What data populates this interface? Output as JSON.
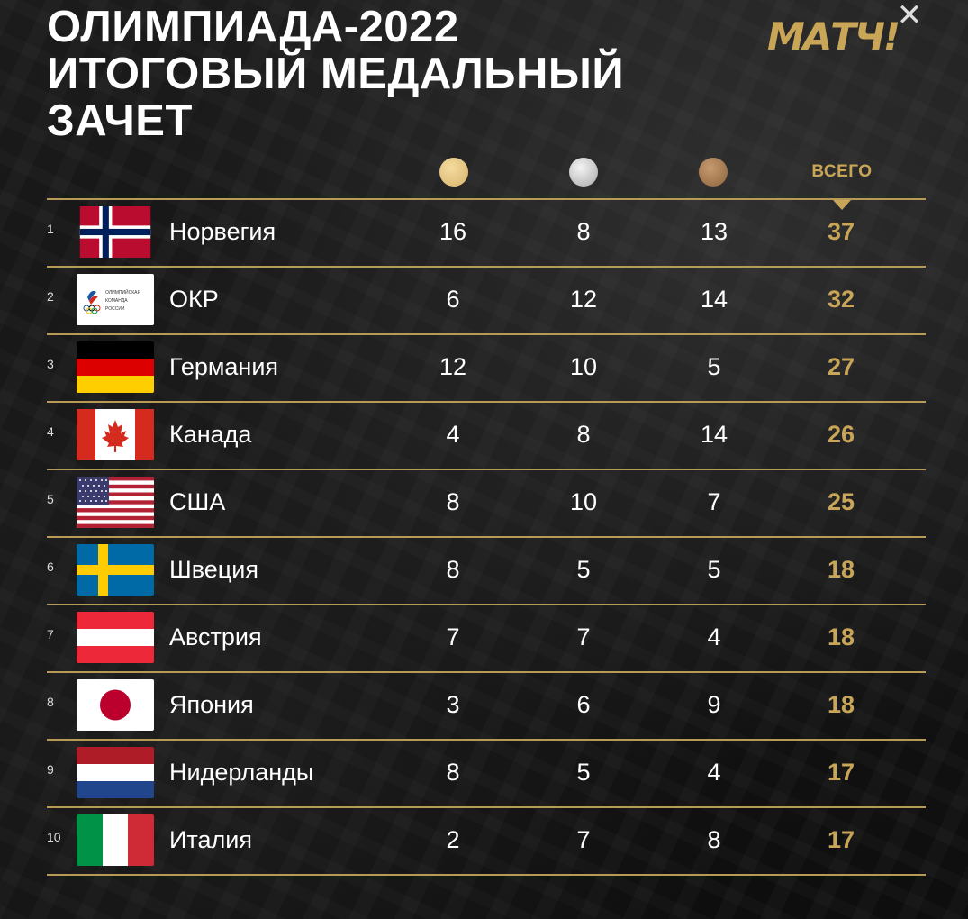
{
  "title": {
    "line1": "ОЛИМПИАДА-2022",
    "line2": "ИТОГОВЫЙ МЕДАЛЬНЫЙ",
    "line3": "ЗАЧЕТ"
  },
  "logo": "МАТЧ!",
  "close_icon": "close-icon",
  "header": {
    "total_label": "ВСЕГО"
  },
  "colors": {
    "gold_accent": "#c9a557",
    "gold_medal": "#d7b46a",
    "silver_medal": "#a9a9a9",
    "bronze_medal": "#8c6440"
  },
  "rows": [
    {
      "rank": "1",
      "country": "Норвегия",
      "gold": "16",
      "silver": "8",
      "bronze": "13",
      "total": "37"
    },
    {
      "rank": "2",
      "country": "ОКР",
      "gold": "6",
      "silver": "12",
      "bronze": "14",
      "total": "32",
      "flag_text": [
        "ОЛИМПИЙСКАЯ",
        "КОМАНДА",
        "РОССИИ"
      ]
    },
    {
      "rank": "3",
      "country": "Германия",
      "gold": "12",
      "silver": "10",
      "bronze": "5",
      "total": "27"
    },
    {
      "rank": "4",
      "country": "Канада",
      "gold": "4",
      "silver": "8",
      "bronze": "14",
      "total": "26"
    },
    {
      "rank": "5",
      "country": "США",
      "gold": "8",
      "silver": "10",
      "bronze": "7",
      "total": "25"
    },
    {
      "rank": "6",
      "country": "Швеция",
      "gold": "8",
      "silver": "5",
      "bronze": "5",
      "total": "18"
    },
    {
      "rank": "7",
      "country": "Австрия",
      "gold": "7",
      "silver": "7",
      "bronze": "4",
      "total": "18"
    },
    {
      "rank": "8",
      "country": "Япония",
      "gold": "3",
      "silver": "6",
      "bronze": "9",
      "total": "18"
    },
    {
      "rank": "9",
      "country": "Нидерланды",
      "gold": "8",
      "silver": "5",
      "bronze": "4",
      "total": "17"
    },
    {
      "rank": "10",
      "country": "Италия",
      "gold": "2",
      "silver": "7",
      "bronze": "8",
      "total": "17"
    }
  ]
}
